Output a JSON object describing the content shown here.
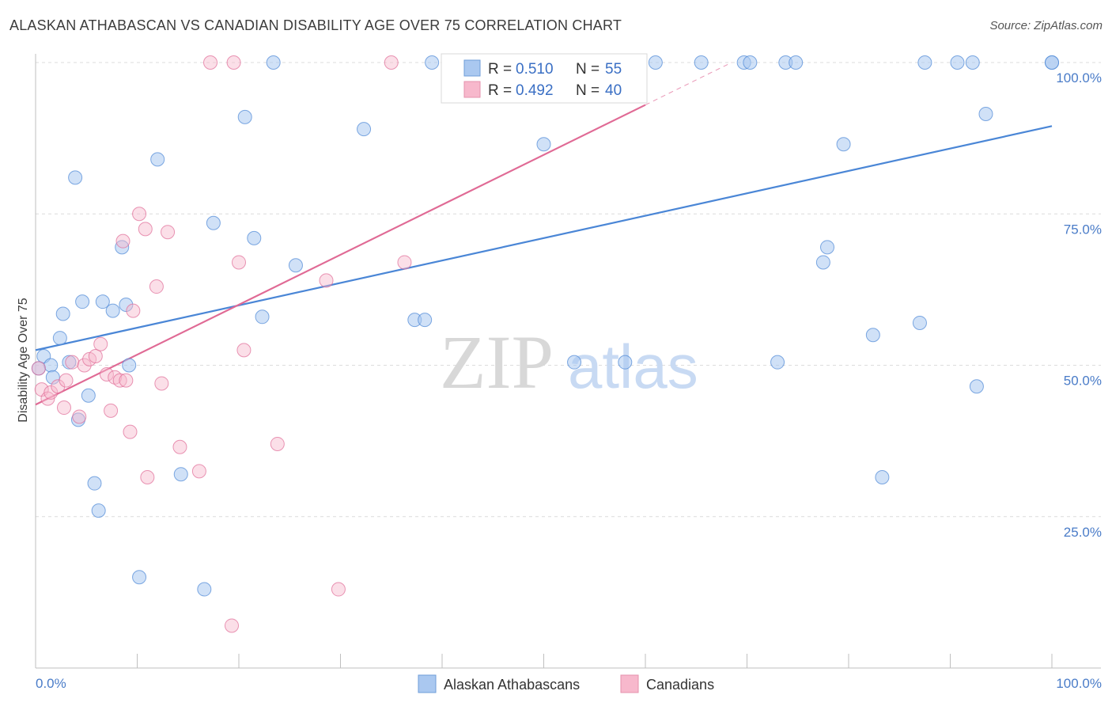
{
  "header": {
    "title": "ALASKAN ATHABASCAN VS CANADIAN DISABILITY AGE OVER 75 CORRELATION CHART",
    "source": "Source: ZipAtlas.com"
  },
  "watermark": {
    "zip": "ZIP",
    "atlas": "atlas"
  },
  "legend": {
    "r_label": "R =",
    "n_label": "N =",
    "rows": [
      {
        "r": "0.510",
        "n": "55",
        "color": "#9bbfea"
      },
      {
        "r": "0.492",
        "n": "40",
        "color": "#f2a6bf"
      }
    ]
  },
  "chart_data": {
    "type": "scatter",
    "title": "ALASKAN ATHABASCAN VS CANADIAN DISABILITY AGE OVER 75 CORRELATION CHART",
    "xlabel": "",
    "ylabel": "Disability Age Over 75",
    "xlim": [
      0,
      100
    ],
    "ylim": [
      0,
      100
    ],
    "x_ticks": [
      "0.0%",
      "100.0%"
    ],
    "y_ticks": [
      {
        "value": 25,
        "label": "25.0%"
      },
      {
        "value": 50,
        "label": "50.0%"
      },
      {
        "value": 75,
        "label": "75.0%"
      },
      {
        "value": 100,
        "label": "100.0%"
      }
    ],
    "grid": true,
    "legend_position": "top-center",
    "series": [
      {
        "name": "Alaskan Athabascans",
        "color": "#4a86d6",
        "fill": "#aac8f0",
        "r": 0.51,
        "n": 55,
        "trend": {
          "x0": 0,
          "y0": 52.5,
          "x1": 100,
          "y1": 89.5
        },
        "points": [
          [
            0.3,
            49.5
          ],
          [
            0.8,
            51.5
          ],
          [
            1.5,
            50.0
          ],
          [
            1.7,
            48.0
          ],
          [
            2.4,
            54.5
          ],
          [
            2.7,
            58.5
          ],
          [
            3.3,
            50.5
          ],
          [
            3.9,
            81.0
          ],
          [
            4.2,
            41.0
          ],
          [
            4.6,
            60.5
          ],
          [
            5.2,
            45.0
          ],
          [
            5.8,
            30.5
          ],
          [
            6.2,
            26.0
          ],
          [
            6.6,
            60.5
          ],
          [
            7.6,
            59.0
          ],
          [
            8.5,
            69.5
          ],
          [
            8.9,
            60.0
          ],
          [
            9.2,
            50.0
          ],
          [
            10.2,
            15.0
          ],
          [
            12.0,
            84.0
          ],
          [
            14.3,
            32.0
          ],
          [
            16.6,
            13.0
          ],
          [
            17.5,
            73.5
          ],
          [
            20.6,
            91.0
          ],
          [
            21.5,
            71.0
          ],
          [
            22.3,
            58.0
          ],
          [
            23.4,
            100.0
          ],
          [
            25.6,
            66.5
          ],
          [
            32.3,
            89.0
          ],
          [
            37.3,
            57.5
          ],
          [
            38.3,
            57.5
          ],
          [
            39.0,
            100.0
          ],
          [
            50.0,
            86.5
          ],
          [
            53.0,
            50.5
          ],
          [
            58.0,
            50.5
          ],
          [
            61.0,
            100.0
          ],
          [
            65.5,
            100.0
          ],
          [
            69.7,
            100.0
          ],
          [
            70.3,
            100.0
          ],
          [
            73.0,
            50.5
          ],
          [
            73.8,
            100.0
          ],
          [
            74.8,
            100.0
          ],
          [
            77.5,
            67.0
          ],
          [
            77.9,
            69.5
          ],
          [
            79.5,
            86.5
          ],
          [
            82.4,
            55.0
          ],
          [
            83.3,
            31.5
          ],
          [
            87.0,
            57.0
          ],
          [
            87.5,
            100.0
          ],
          [
            90.7,
            100.0
          ],
          [
            92.2,
            100.0
          ],
          [
            92.6,
            46.5
          ],
          [
            93.5,
            91.5
          ],
          [
            100.0,
            100.0
          ],
          [
            100.0,
            100.0
          ]
        ]
      },
      {
        "name": "Canadians",
        "color": "#e06a95",
        "fill": "#f7b8cc",
        "r": 0.492,
        "n": 40,
        "trend": {
          "x0": 0,
          "y0": 43.5,
          "x1": 60,
          "y1": 93.0
        },
        "points": [
          [
            0.3,
            49.5
          ],
          [
            0.6,
            46.0
          ],
          [
            1.2,
            44.5
          ],
          [
            1.5,
            45.5
          ],
          [
            2.2,
            46.5
          ],
          [
            2.8,
            43.0
          ],
          [
            3.0,
            47.5
          ],
          [
            3.6,
            50.5
          ],
          [
            4.3,
            41.5
          ],
          [
            4.8,
            50.0
          ],
          [
            5.3,
            51.0
          ],
          [
            5.9,
            51.5
          ],
          [
            6.4,
            53.5
          ],
          [
            7.0,
            48.5
          ],
          [
            7.4,
            42.5
          ],
          [
            7.8,
            48.0
          ],
          [
            8.3,
            47.5
          ],
          [
            8.6,
            70.5
          ],
          [
            8.9,
            47.5
          ],
          [
            9.3,
            39.0
          ],
          [
            9.6,
            59.0
          ],
          [
            10.2,
            75.0
          ],
          [
            10.8,
            72.5
          ],
          [
            11.0,
            31.5
          ],
          [
            11.9,
            63.0
          ],
          [
            12.4,
            47.0
          ],
          [
            13.0,
            72.0
          ],
          [
            14.2,
            36.5
          ],
          [
            16.1,
            32.5
          ],
          [
            17.2,
            100.0
          ],
          [
            19.3,
            7.0
          ],
          [
            19.5,
            100.0
          ],
          [
            20.0,
            67.0
          ],
          [
            20.5,
            52.5
          ],
          [
            23.8,
            37.0
          ],
          [
            28.6,
            64.0
          ],
          [
            29.8,
            13.0
          ],
          [
            35.0,
            100.0
          ],
          [
            36.3,
            67.0
          ],
          [
            55.5,
            100.0
          ]
        ]
      }
    ]
  }
}
